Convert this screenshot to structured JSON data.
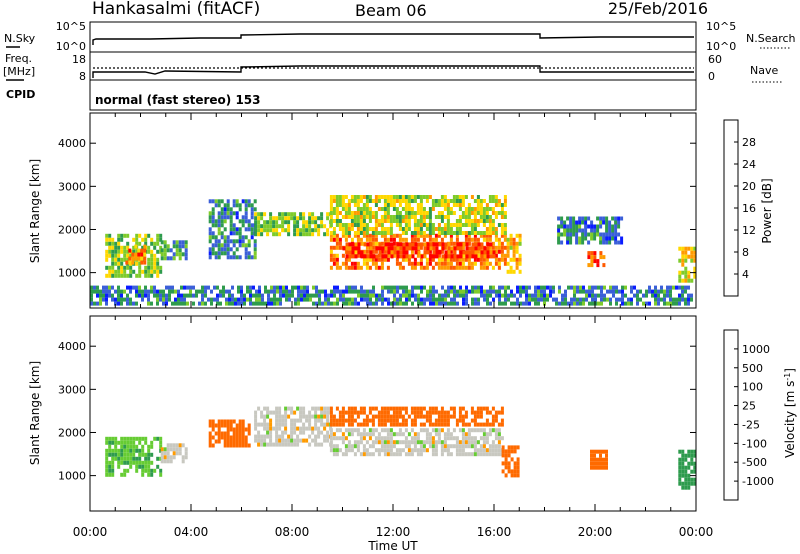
{
  "header": {
    "station": "Hankasalmi (fitACF)",
    "beam": "Beam 06",
    "date": "25/Feb/2016"
  },
  "status_panel": {
    "nsky_label": "N.Sky",
    "nsearch_label": "N.Search",
    "nsky_ticks": [
      "10^5",
      "10^0"
    ],
    "nsearch_ticks": [
      "10^5",
      "10^0"
    ],
    "freq_label_line1": "Freq.",
    "freq_label_line2": "[MHz]",
    "freq_ticks": [
      "18",
      "8"
    ],
    "nave_label": "Nave",
    "nave_ticks": [
      "60",
      "0"
    ],
    "cpid_label": "CPID",
    "cpid_text": "normal (fast stereo) 153"
  },
  "power_colorbar": {
    "label": "Power [dB]",
    "ticks": [
      "28",
      "24",
      "20",
      "16",
      "12",
      "8",
      "4"
    ],
    "colors": [
      "#ff0000",
      "#ff5a00",
      "#ff9b00",
      "#ffd800",
      "#7ecb2a",
      "#2e9b4d",
      "#3b5fd8",
      "#0a1cff"
    ]
  },
  "velocity_colorbar": {
    "label_main": "Velocity [m s",
    "label_sup": "-1",
    "label_end": "]",
    "ticks": [
      "1000",
      "500",
      "100",
      "25",
      "-25",
      "-100",
      "-500",
      "-1000"
    ],
    "colors": [
      "#1a2fd0",
      "#3b78c8",
      "#2e9b4d",
      "#66cc33",
      "#c8c8c0",
      "#c8c8c0",
      "#ff9b00",
      "#ff6a00",
      "#ff0000"
    ]
  },
  "x_axis": {
    "label": "Time UT",
    "ticks": [
      "00:00",
      "04:00",
      "08:00",
      "12:00",
      "16:00",
      "20:00",
      "00:00"
    ]
  },
  "chart_data": [
    {
      "type": "heatmap",
      "title": "Power",
      "xlabel": "Time UT",
      "ylabel": "Slant Range [km]",
      "xlim": [
        0,
        24
      ],
      "ylim": [
        180,
        4700
      ],
      "ytick_labels": [
        "1000",
        "2000",
        "3000",
        "4000"
      ],
      "colorbar_label": "Power [dB]",
      "regions": [
        {
          "t": [
            0.6,
            2.8
          ],
          "r": [
            950,
            1900
          ],
          "value": 14
        },
        {
          "t": [
            1.4,
            2.2
          ],
          "r": [
            1250,
            1650
          ],
          "value": 24
        },
        {
          "t": [
            2.8,
            3.8
          ],
          "r": [
            1350,
            1750
          ],
          "value": 10
        },
        {
          "t": [
            4.7,
            6.5
          ],
          "r": [
            1350,
            2700
          ],
          "value": 8
        },
        {
          "t": [
            6.5,
            9.5
          ],
          "r": [
            1900,
            2400
          ],
          "value": 14
        },
        {
          "t": [
            9.5,
            16.5
          ],
          "r": [
            1150,
            1900
          ],
          "value": 24
        },
        {
          "t": [
            10.0,
            16.0
          ],
          "r": [
            1400,
            1700
          ],
          "value": 28
        },
        {
          "t": [
            9.5,
            16.5
          ],
          "r": [
            1900,
            2800
          ],
          "value": 16
        },
        {
          "t": [
            16.5,
            17.0
          ],
          "r": [
            1000,
            1900
          ],
          "value": 20
        },
        {
          "t": [
            18.5,
            21.0
          ],
          "r": [
            1700,
            2300
          ],
          "value": 8
        },
        {
          "t": [
            19.7,
            20.5
          ],
          "r": [
            1200,
            1500
          ],
          "value": 26
        },
        {
          "t": [
            23.3,
            24.0
          ],
          "r": [
            800,
            1600
          ],
          "value": 18
        },
        {
          "t": [
            0.0,
            23.8
          ],
          "r": [
            300,
            700
          ],
          "value": 8
        }
      ]
    },
    {
      "type": "heatmap",
      "title": "Velocity",
      "xlabel": "Time UT",
      "ylabel": "Slant Range [km]",
      "xlim": [
        0,
        24
      ],
      "ylim": [
        180,
        4700
      ],
      "ytick_labels": [
        "1000",
        "2000",
        "3000",
        "4000"
      ],
      "colorbar_label": "Velocity [m s-1]",
      "regions": [
        {
          "t": [
            0.6,
            2.8
          ],
          "r": [
            1000,
            1900
          ],
          "value": 80
        },
        {
          "t": [
            2.8,
            3.8
          ],
          "r": [
            1350,
            1750
          ],
          "value": 0
        },
        {
          "t": [
            4.7,
            6.3
          ],
          "r": [
            1700,
            2300
          ],
          "value": -150
        },
        {
          "t": [
            6.5,
            9.5
          ],
          "r": [
            1700,
            2600
          ],
          "value": 0
        },
        {
          "t": [
            9.5,
            16.3
          ],
          "r": [
            1500,
            2100
          ],
          "value": 0
        },
        {
          "t": [
            9.5,
            16.3
          ],
          "r": [
            2200,
            2600
          ],
          "value": -300
        },
        {
          "t": [
            16.3,
            17.0
          ],
          "r": [
            1000,
            1700
          ],
          "value": -400
        },
        {
          "t": [
            19.8,
            20.4
          ],
          "r": [
            1200,
            1600
          ],
          "value": -400
        },
        {
          "t": [
            23.3,
            24.0
          ],
          "r": [
            700,
            1600
          ],
          "value": 200
        }
      ]
    }
  ]
}
